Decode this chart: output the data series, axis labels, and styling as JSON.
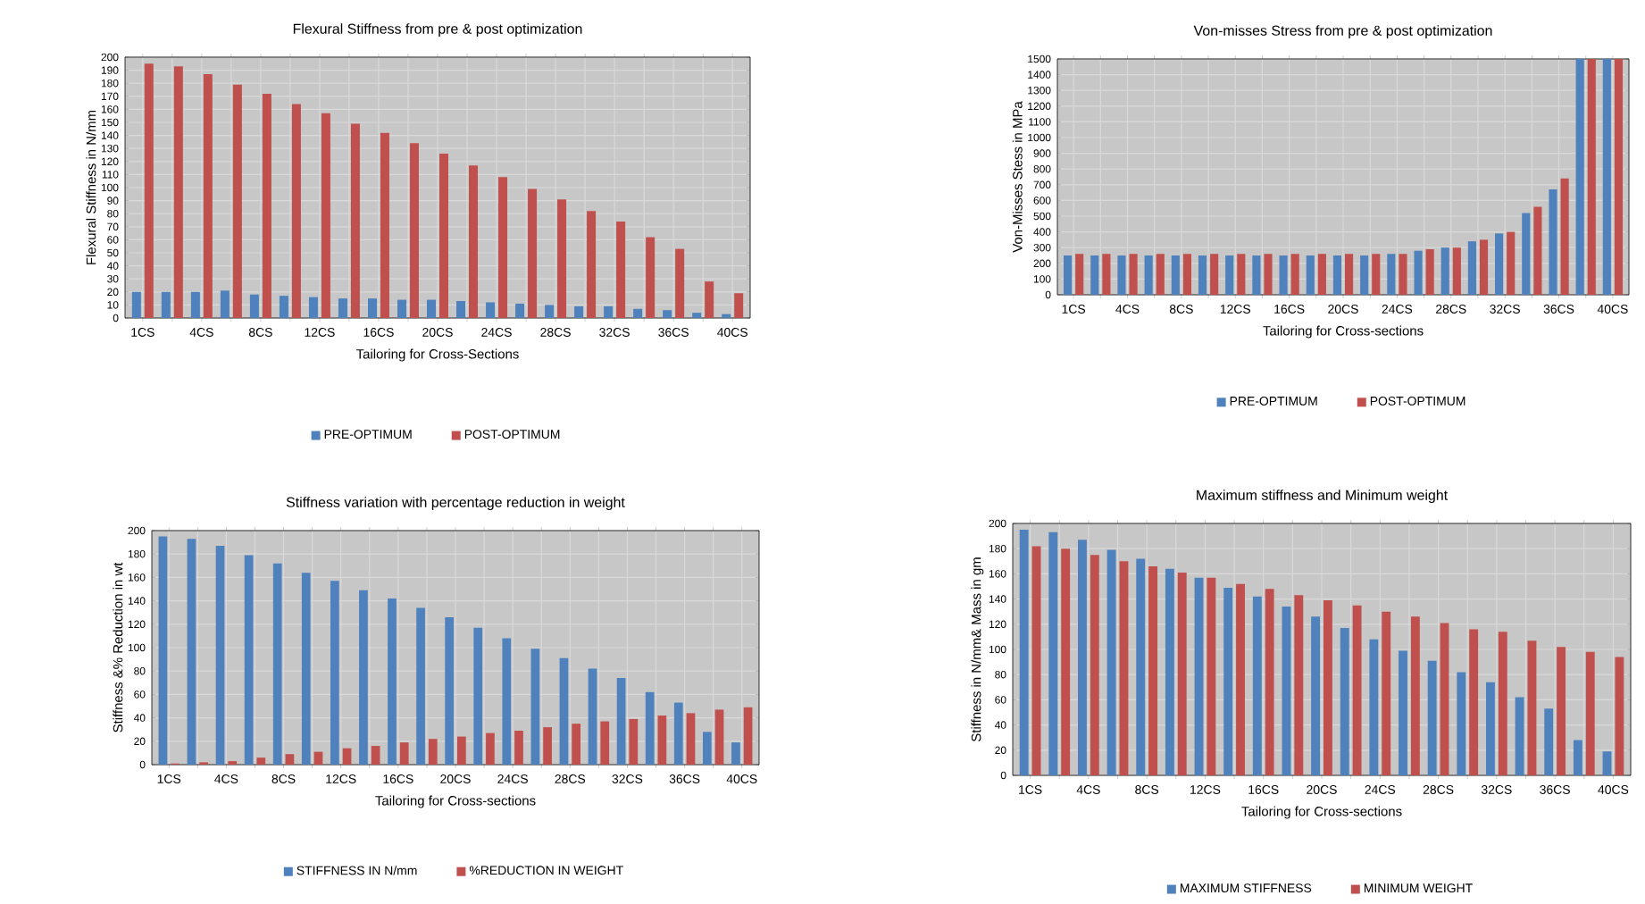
{
  "chart_data": [
    {
      "type": "bar",
      "title": "Flexural Stiffness from pre & post optimization",
      "xlabel": "Tailoring for Cross-Sections",
      "ylabel": "Flexural Stiffness in N/mm",
      "categories": [
        "1CS",
        null,
        "4CS",
        null,
        "8CS",
        null,
        "12CS",
        null,
        "16CS",
        null,
        "20CS",
        null,
        "24CS",
        null,
        "28CS",
        null,
        "32CS",
        null,
        "36CS",
        null,
        "40CS"
      ],
      "series": [
        {
          "name": "PRE-OPTIMUM",
          "color": "#4f81bd",
          "values": [
            20,
            20,
            20,
            21,
            18,
            17,
            16,
            15,
            15,
            14,
            14,
            13,
            12,
            11,
            10,
            9,
            9,
            7,
            6,
            4,
            3
          ]
        },
        {
          "name": "POST-OPTIMUM",
          "color": "#c0504d",
          "values": [
            195,
            193,
            187,
            179,
            172,
            164,
            157,
            149,
            142,
            134,
            126,
            117,
            108,
            99,
            91,
            82,
            74,
            62,
            53,
            28,
            19
          ]
        }
      ],
      "ylim": [
        0,
        200
      ],
      "yticks": [
        0,
        10,
        20,
        30,
        40,
        50,
        60,
        70,
        80,
        90,
        100,
        110,
        120,
        130,
        140,
        150,
        160,
        170,
        180,
        190,
        200
      ],
      "grid": true,
      "legend": "bottom"
    },
    {
      "type": "bar",
      "title": "Von-misses Stress from pre & post optimization",
      "xlabel": "Tailoring for Cross-sections",
      "ylabel": "Von-Misses Stess in MPa",
      "categories": [
        "1CS",
        null,
        "4CS",
        null,
        "8CS",
        null,
        "12CS",
        null,
        "16CS",
        null,
        "20CS",
        null,
        "24CS",
        null,
        "28CS",
        null,
        "32CS",
        null,
        "36CS",
        null,
        "40CS"
      ],
      "series": [
        {
          "name": "PRE-OPTIMUM",
          "color": "#4f81bd",
          "values": [
            250,
            250,
            250,
            250,
            250,
            250,
            250,
            250,
            250,
            250,
            250,
            250,
            260,
            280,
            300,
            340,
            390,
            520,
            670,
            1500,
            1500
          ]
        },
        {
          "name": "POST-OPTIMUM",
          "color": "#c0504d",
          "values": [
            260,
            260,
            260,
            260,
            260,
            260,
            260,
            260,
            260,
            260,
            260,
            260,
            260,
            290,
            300,
            350,
            400,
            560,
            740,
            1500,
            1500
          ]
        }
      ],
      "ylim": [
        0,
        1500
      ],
      "yticks": [
        0,
        100,
        200,
        300,
        400,
        500,
        600,
        700,
        800,
        900,
        1000,
        1100,
        1200,
        1300,
        1400,
        1500
      ],
      "grid": true,
      "legend": "bottom"
    },
    {
      "type": "bar",
      "title": "Stiffness variation with percentage reduction in weight",
      "xlabel": "Tailoring for Cross-sections",
      "ylabel": "Stiffness &% Reduction in wt",
      "categories": [
        "1CS",
        null,
        "4CS",
        null,
        "8CS",
        null,
        "12CS",
        null,
        "16CS",
        null,
        "20CS",
        null,
        "24CS",
        null,
        "28CS",
        null,
        "32CS",
        null,
        "36CS",
        null,
        "40CS"
      ],
      "series": [
        {
          "name": "STIFFNESS IN N/mm",
          "color": "#4f81bd",
          "values": [
            195,
            193,
            187,
            179,
            172,
            164,
            157,
            149,
            142,
            134,
            126,
            117,
            108,
            99,
            91,
            82,
            74,
            62,
            53,
            28,
            19
          ]
        },
        {
          "name": "%REDUCTION IN WEIGHT",
          "color": "#c0504d",
          "values": [
            1,
            2,
            3,
            6,
            9,
            11,
            14,
            16,
            19,
            22,
            24,
            27,
            29,
            32,
            35,
            37,
            39,
            42,
            44,
            47,
            49
          ]
        }
      ],
      "ylim": [
        0,
        200
      ],
      "yticks": [
        0,
        20,
        40,
        60,
        80,
        100,
        120,
        140,
        160,
        180,
        200
      ],
      "grid": true,
      "legend": "bottom"
    },
    {
      "type": "bar",
      "title": "Maximum stiffness and Minimum weight",
      "xlabel": "Tailoring for Cross-sections",
      "ylabel": "Stiffness in N/mm& Mass in gm",
      "categories": [
        "1CS",
        null,
        "4CS",
        null,
        "8CS",
        null,
        "12CS",
        null,
        "16CS",
        null,
        "20CS",
        null,
        "24CS",
        null,
        "28CS",
        null,
        "32CS",
        null,
        "36CS",
        null,
        "40CS"
      ],
      "series": [
        {
          "name": "MAXIMUM STIFFNESS",
          "color": "#4f81bd",
          "values": [
            195,
            193,
            187,
            179,
            172,
            164,
            157,
            149,
            142,
            134,
            126,
            117,
            108,
            99,
            91,
            82,
            74,
            62,
            53,
            28,
            19
          ]
        },
        {
          "name": "MINIMUM WEIGHT",
          "color": "#c0504d",
          "values": [
            182,
            180,
            175,
            170,
            166,
            161,
            157,
            152,
            148,
            143,
            139,
            135,
            130,
            126,
            121,
            116,
            114,
            107,
            102,
            98,
            94
          ]
        }
      ],
      "ylim": [
        0,
        200
      ],
      "yticks": [
        0,
        20,
        40,
        60,
        80,
        100,
        120,
        140,
        160,
        180,
        200
      ],
      "grid": true,
      "legend": "bottom"
    }
  ]
}
